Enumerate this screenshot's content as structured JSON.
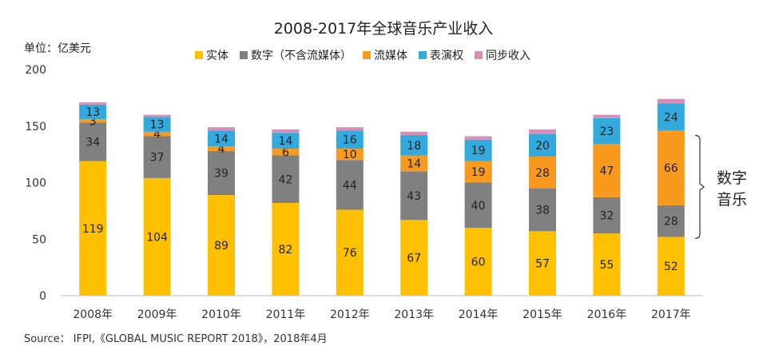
{
  "chart_data": {
    "type": "bar",
    "stacked": true,
    "title": "2008-2017年全球音乐产业收入",
    "unit_label": "单位：亿美元",
    "categories": [
      "2008年",
      "2009年",
      "2010年",
      "2011年",
      "2012年",
      "2013年",
      "2014年",
      "2015年",
      "2016年",
      "2017年"
    ],
    "ylim": [
      0,
      200
    ],
    "yticks": [
      0,
      50,
      100,
      150,
      200
    ],
    "grid": false,
    "legend_position": "top",
    "series": [
      {
        "name": "实体",
        "color": "#FFC000",
        "values": [
          119,
          104,
          89,
          82,
          76,
          67,
          60,
          57,
          55,
          52
        ],
        "labels": [
          "119",
          "104",
          "89",
          "82",
          "76",
          "67",
          "60",
          "57",
          "55",
          "52"
        ]
      },
      {
        "name": "数字（不含流媒体）",
        "color": "#808080",
        "values": [
          34,
          37,
          39,
          42,
          44,
          43,
          40,
          38,
          32,
          28
        ],
        "labels": [
          "34",
          "37",
          "39",
          "42",
          "44",
          "43",
          "40",
          "38",
          "32",
          "28"
        ]
      },
      {
        "name": "流媒体",
        "color": "#F79A1E",
        "values": [
          3,
          4,
          4,
          6,
          10,
          14,
          19,
          28,
          47,
          66
        ],
        "labels": [
          "3",
          "4",
          "4",
          "6",
          "10",
          "14",
          "19",
          "28",
          "47",
          "66"
        ]
      },
      {
        "name": "表演权",
        "color": "#33AADD",
        "values": [
          13,
          13,
          14,
          14,
          16,
          18,
          19,
          20,
          23,
          24
        ],
        "labels": [
          "13",
          "13",
          "14",
          "14",
          "16",
          "18",
          "19",
          "20",
          "23",
          "24"
        ]
      },
      {
        "name": "同步收入",
        "color": "#D98FB5",
        "values": [
          2,
          2,
          3,
          3,
          3,
          3,
          3,
          4,
          3,
          4
        ],
        "labels": [
          "",
          "",
          "",
          "",
          "",
          "",
          "",
          "",
          "",
          ""
        ]
      }
    ],
    "annotation": {
      "text_line1": "数字",
      "text_line2": "音乐"
    },
    "source": "Source： IFPI,《GLOBAL MUSIC REPORT 2018》，2018年4月"
  }
}
